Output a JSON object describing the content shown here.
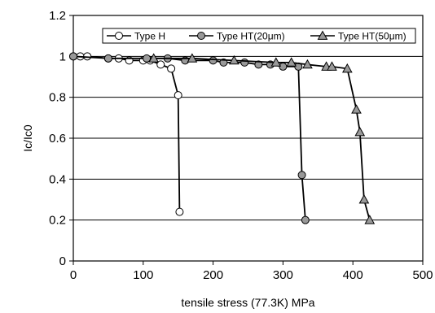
{
  "chart_data": {
    "type": "line",
    "xlabel": "tensile stress (77.3K) MPa",
    "ylabel": "Ic/Ic0",
    "xlim": [
      0,
      500
    ],
    "ylim": [
      0,
      1.2
    ],
    "x_ticks": [
      0,
      100,
      200,
      300,
      400,
      500
    ],
    "y_ticks": [
      0,
      0.2,
      0.4,
      0.6,
      0.8,
      1,
      1.2
    ],
    "x_tick_labels": [
      "0",
      "100",
      "200",
      "300",
      "400",
      "500"
    ],
    "y_tick_labels": [
      "0",
      "0.2",
      "0.4",
      "0.6",
      "0.8",
      "1",
      "1.2"
    ],
    "grid": "horizontal",
    "legend_position": "top",
    "series": [
      {
        "name": "Type H",
        "marker": "circle-open",
        "color": "#000000",
        "fill": "#ffffff",
        "points": [
          [
            0,
            1.0
          ],
          [
            10,
            1.0
          ],
          [
            20,
            1.0
          ],
          [
            50,
            0.99
          ],
          [
            65,
            0.99
          ],
          [
            80,
            0.98
          ],
          [
            100,
            0.98
          ],
          [
            110,
            0.98
          ],
          [
            125,
            0.96
          ],
          [
            140,
            0.94
          ],
          [
            150,
            0.81
          ],
          [
            152,
            0.24
          ]
        ]
      },
      {
        "name": "Type HT(20μm)",
        "marker": "circle-filled",
        "color": "#000000",
        "fill": "#999999",
        "points": [
          [
            0,
            1.0
          ],
          [
            50,
            0.99
          ],
          [
            105,
            0.99
          ],
          [
            135,
            0.99
          ],
          [
            160,
            0.98
          ],
          [
            200,
            0.98
          ],
          [
            215,
            0.97
          ],
          [
            245,
            0.97
          ],
          [
            265,
            0.96
          ],
          [
            282,
            0.96
          ],
          [
            300,
            0.95
          ],
          [
            322,
            0.95
          ],
          [
            327,
            0.42
          ],
          [
            332,
            0.2
          ]
        ]
      },
      {
        "name": "Type HT(50μm)",
        "marker": "triangle-filled",
        "color": "#000000",
        "fill": "#999999",
        "points": [
          [
            115,
            0.99
          ],
          [
            170,
            0.99
          ],
          [
            230,
            0.98
          ],
          [
            290,
            0.97
          ],
          [
            312,
            0.97
          ],
          [
            335,
            0.96
          ],
          [
            362,
            0.95
          ],
          [
            370,
            0.95
          ],
          [
            392,
            0.94
          ],
          [
            405,
            0.74
          ],
          [
            410,
            0.63
          ],
          [
            416,
            0.3
          ],
          [
            424,
            0.2
          ]
        ]
      }
    ]
  }
}
